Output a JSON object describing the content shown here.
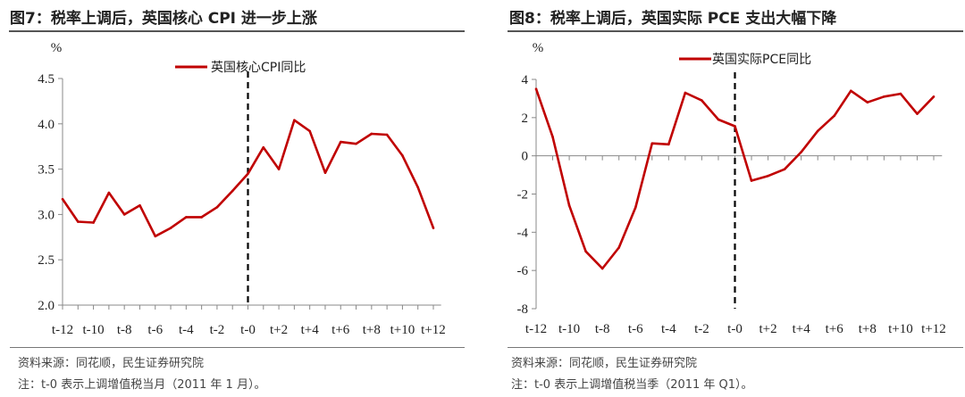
{
  "panels": [
    {
      "title": "图7：税率上调后，英国核心 CPI 进一步上涨",
      "source": "资料来源：同花顺，民生证券研究院",
      "note": "注：t-0 表示上调增值税当月（2011 年 1 月）。"
    },
    {
      "title": "图8：税率上调后，英国实际 PCE 支出大幅下降",
      "source": "资料来源：同花顺，民生证券研究院",
      "note": "注：t-0 表示上调增值税当季（2011 年 Q1）。"
    }
  ],
  "chart_data": [
    {
      "type": "line",
      "title": "",
      "ylabel": "%",
      "ylim": [
        2.0,
        4.5
      ],
      "yticks": [
        "2.0",
        "2.5",
        "3.0",
        "3.5",
        "4.0",
        "4.5"
      ],
      "xtick_labels": [
        "t-12",
        "t-10",
        "t-8",
        "t-6",
        "t-4",
        "t-2",
        "t-0",
        "t+2",
        "t+4",
        "t+6",
        "t+8",
        "t+10",
        "t+12"
      ],
      "event_marker": "t-0",
      "legend_position": "top-center",
      "grid": false,
      "series_color": "#c00000",
      "series": [
        {
          "name": "英国核心CPI同比",
          "x": [
            "t-12",
            "t-11",
            "t-10",
            "t-9",
            "t-8",
            "t-7",
            "t-6",
            "t-5",
            "t-4",
            "t-3",
            "t-2",
            "t-1",
            "t-0",
            "t+1",
            "t+2",
            "t+3",
            "t+4",
            "t+5",
            "t+6",
            "t+7",
            "t+8",
            "t+9",
            "t+10",
            "t+11",
            "t+12"
          ],
          "values": [
            3.17,
            2.92,
            2.91,
            3.24,
            3.0,
            3.1,
            2.76,
            2.85,
            2.97,
            2.97,
            3.08,
            3.26,
            3.45,
            3.74,
            3.5,
            4.04,
            3.92,
            3.46,
            3.8,
            3.78,
            3.89,
            3.88,
            3.65,
            3.3,
            2.85
          ]
        }
      ]
    },
    {
      "type": "line",
      "title": "",
      "ylabel": "%",
      "ylim": [
        -8,
        4
      ],
      "yticks": [
        "-8",
        "-6",
        "-4",
        "-2",
        "0",
        "2",
        "4"
      ],
      "xtick_labels": [
        "t-12",
        "t-10",
        "t-8",
        "t-6",
        "t-4",
        "t-2",
        "t-0",
        "t+2",
        "t+4",
        "t+6",
        "t+8",
        "t+10",
        "t+12"
      ],
      "event_marker": "t-0",
      "legend_position": "top-center",
      "grid": false,
      "series_color": "#c00000",
      "series": [
        {
          "name": "英国实际PCE同比",
          "x": [
            "t-12",
            "t-11",
            "t-10",
            "t-9",
            "t-8",
            "t-7",
            "t-6",
            "t-5",
            "t-4",
            "t-3",
            "t-2",
            "t-1",
            "t-0",
            "t+1",
            "t+2",
            "t+3",
            "t+4",
            "t+5",
            "t+6",
            "t+7",
            "t+8",
            "t+9",
            "t+10",
            "t+11",
            "t+12"
          ],
          "values": [
            3.5,
            1.0,
            -2.6,
            -5.0,
            -5.9,
            -4.8,
            -2.7,
            0.65,
            0.6,
            3.3,
            2.9,
            1.9,
            1.55,
            -1.3,
            -1.05,
            -0.7,
            0.2,
            1.3,
            2.1,
            3.4,
            2.8,
            3.1,
            3.25,
            2.2,
            3.1
          ]
        }
      ]
    }
  ]
}
